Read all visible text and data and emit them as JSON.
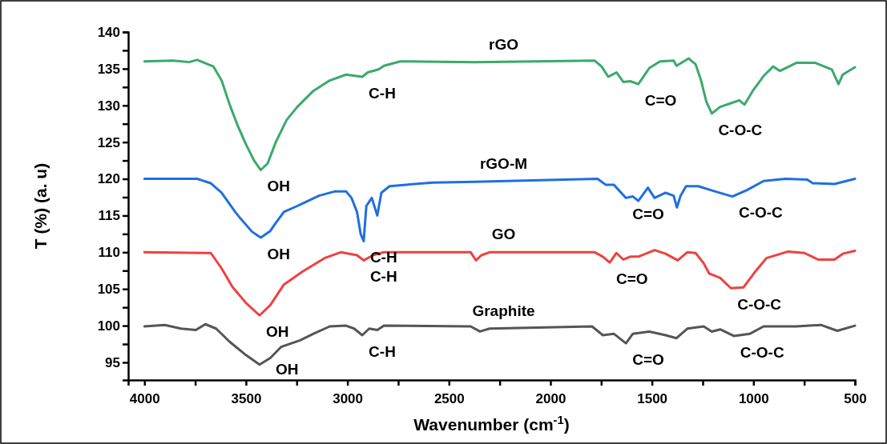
{
  "chart_data": {
    "type": "line",
    "xlabel": "Wavenumber (cm$^{-1}$)",
    "ylabel": "T (%) (a. u)",
    "xlim": [
      4080,
      500
    ],
    "ylim": [
      92.6,
      140
    ],
    "xticks": [
      4000,
      {
        "value": 3750,
        "label": null
      },
      3500,
      {
        "value": 3250,
        "label": null
      },
      3000,
      {
        "value": 2750,
        "label": null
      },
      2500,
      {
        "value": 2250,
        "label": null
      },
      2000,
      {
        "value": 1750,
        "label": null
      },
      1500,
      {
        "value": 1250,
        "label": null
      },
      1000,
      {
        "value": 750,
        "label": null
      },
      500
    ],
    "yticks": [
      95,
      {
        "value": 97.5,
        "label": null
      },
      100,
      {
        "value": 102.5,
        "label": null
      },
      105,
      {
        "value": 107.5,
        "label": null
      },
      110,
      {
        "value": 112.5,
        "label": null
      },
      115,
      {
        "value": 117.5,
        "label": null
      },
      120,
      {
        "value": 122.5,
        "label": null
      },
      125,
      {
        "value": 127.5,
        "label": null
      },
      130,
      {
        "value": 132.5,
        "label": null
      },
      135,
      {
        "value": 137.5,
        "label": null
      },
      140
    ],
    "legend": false,
    "marker": "none",
    "line_style": "solid",
    "series": [
      {
        "name": "rGO",
        "color": "#3aaa6a",
        "x": [
          4000,
          3860,
          3780,
          3740,
          3687,
          3660,
          3620,
          3580,
          3540,
          3500,
          3460,
          3427,
          3393,
          3353,
          3300,
          3247,
          3167,
          3087,
          3007,
          2927,
          2900,
          2847,
          2820,
          2740,
          2372,
          1782,
          1748,
          1715,
          1675,
          1641,
          1607,
          1567,
          1513,
          1460,
          1393,
          1379,
          1319,
          1285,
          1258,
          1232,
          1205,
          1164,
          1111,
          1070,
          1044,
          1003,
          950,
          903,
          869,
          789,
          695,
          614,
          581,
          560,
          500
        ],
        "values": [
          136.0,
          136.1,
          135.9,
          136.2,
          135.6,
          135.3,
          133.4,
          130.1,
          127.2,
          124.7,
          122.5,
          121.2,
          122.1,
          125.0,
          128.0,
          129.8,
          132.0,
          133.4,
          134.2,
          133.9,
          134.5,
          134.9,
          135.4,
          136.0,
          135.9,
          136.1,
          135.3,
          133.9,
          134.5,
          133.2,
          133.3,
          132.9,
          135.1,
          136.0,
          136.1,
          135.4,
          136.4,
          135.6,
          133.4,
          130.5,
          128.9,
          129.8,
          130.3,
          130.7,
          130.1,
          132.0,
          134.0,
          135.3,
          134.7,
          135.8,
          135.8,
          134.9,
          132.9,
          134.2,
          135.2
        ]
      },
      {
        "name": "rGO-M",
        "color": "#1f6fe0",
        "x": [
          4000,
          3740,
          3673,
          3620,
          3553,
          3527,
          3470,
          3427,
          3380,
          3353,
          3313,
          3247,
          3140,
          3060,
          3007,
          2980,
          2953,
          2935,
          2920,
          2907,
          2880,
          2853,
          2833,
          2793,
          2580,
          2372,
          1768,
          1728,
          1688,
          1628,
          1594,
          1567,
          1520,
          1487,
          1433,
          1393,
          1377,
          1359,
          1332,
          1272,
          1191,
          1104,
          1030,
          950,
          842,
          735,
          708,
          601,
          500
        ],
        "values": [
          120.0,
          120.0,
          119.4,
          118.1,
          115.5,
          114.6,
          112.8,
          112.0,
          112.9,
          114.0,
          115.5,
          116.3,
          117.7,
          118.3,
          118.3,
          117.4,
          115.5,
          112.5,
          111.5,
          116.3,
          117.4,
          115.0,
          118.1,
          119.0,
          119.5,
          119.6,
          120.0,
          119.2,
          119.2,
          117.4,
          117.6,
          117.0,
          118.8,
          117.4,
          118.1,
          117.7,
          116.1,
          117.7,
          119.0,
          119.0,
          118.3,
          117.6,
          118.5,
          119.7,
          120.0,
          119.9,
          119.4,
          119.3,
          120.0
        ]
      },
      {
        "name": "GO",
        "color": "#f04040",
        "x": [
          4000,
          3673,
          3620,
          3567,
          3500,
          3433,
          3380,
          3313,
          3220,
          3113,
          3033,
          2953,
          2920,
          2873,
          2847,
          2820,
          2393,
          2367,
          2340,
          2300,
          1782,
          1742,
          1708,
          1675,
          1641,
          1607,
          1567,
          1487,
          1433,
          1373,
          1326,
          1285,
          1245,
          1218,
          1164,
          1111,
          1050,
          990,
          936,
          829,
          749,
          681,
          601,
          560,
          500
        ],
        "values": [
          110.0,
          109.9,
          107.8,
          105.3,
          103.1,
          101.4,
          102.8,
          105.6,
          107.4,
          109.2,
          110.0,
          109.6,
          108.9,
          109.6,
          109.8,
          110.0,
          110.0,
          108.9,
          109.6,
          110.0,
          110.0,
          109.4,
          108.6,
          109.9,
          109.0,
          109.4,
          109.4,
          110.3,
          109.8,
          108.9,
          110.0,
          109.9,
          108.5,
          107.1,
          106.5,
          105.1,
          105.2,
          107.4,
          109.2,
          110.1,
          109.9,
          109.0,
          109.0,
          109.8,
          110.2
        ]
      },
      {
        "name": "Graphite",
        "color": "#555555",
        "x": [
          4000,
          3900,
          3820,
          3747,
          3700,
          3647,
          3580,
          3500,
          3433,
          3380,
          3327,
          3233,
          3167,
          3087,
          3007,
          2967,
          2927,
          2893,
          2853,
          2820,
          2393,
          2347,
          2300,
          1795,
          1742,
          1688,
          1628,
          1594,
          1513,
          1433,
          1379,
          1326,
          1245,
          1205,
          1164,
          1097,
          1017,
          950,
          789,
          668,
          587,
          500
        ],
        "values": [
          99.9,
          100.1,
          99.6,
          99.4,
          100.2,
          99.6,
          97.8,
          96.0,
          94.7,
          95.6,
          97.1,
          98.0,
          98.9,
          99.9,
          100.0,
          99.6,
          98.7,
          99.6,
          99.4,
          100.0,
          99.9,
          99.2,
          99.6,
          99.9,
          98.7,
          98.9,
          97.6,
          98.9,
          99.2,
          98.7,
          98.3,
          99.6,
          99.9,
          99.2,
          99.5,
          98.6,
          98.9,
          99.9,
          99.9,
          100.1,
          99.3,
          100.0
        ]
      }
    ],
    "annotations": [
      {
        "text": "OH",
        "x": 3427,
        "y": 121.2
      },
      {
        "text": "C-H",
        "x": 2927,
        "y": 133.9
      },
      {
        "text": "C=O",
        "x": 1567,
        "y": 132.9
      },
      {
        "text": "C-O-C",
        "x": 1205,
        "y": 128.9
      },
      {
        "text": "OH",
        "x": 3427,
        "y": 112.0
      },
      {
        "text": "C-H",
        "x": 2920,
        "y": 111.5
      },
      {
        "text": "C=O",
        "x": 1628,
        "y": 117.4
      },
      {
        "text": "C-O-C",
        "x": 1104,
        "y": 117.6
      },
      {
        "text": "OH",
        "x": 3433,
        "y": 101.4
      },
      {
        "text": "C-H",
        "x": 2920,
        "y": 108.9
      },
      {
        "text": "C=O",
        "x": 1708,
        "y": 108.6
      },
      {
        "text": "C-O-C",
        "x": 1111,
        "y": 105.1
      },
      {
        "text": "OH",
        "x": 3433,
        "y": 94.7
      },
      {
        "text": "C-H",
        "x": 2927,
        "y": 98.7
      },
      {
        "text": "C=O",
        "x": 1628,
        "y": 97.6
      },
      {
        "text": "C-O-C",
        "x": 1097,
        "y": 98.6
      }
    ]
  }
}
